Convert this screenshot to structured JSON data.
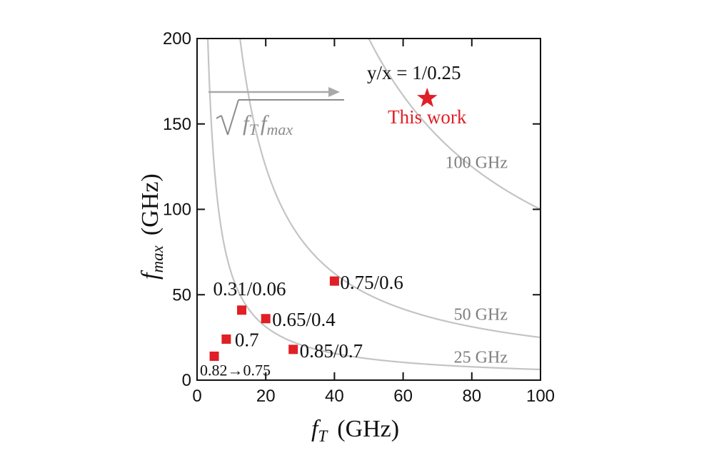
{
  "chart_data": {
    "type": "scatter",
    "xlabel_main": "f",
    "xlabel_sub": "T",
    "xlabel_unit": "(GHz)",
    "ylabel_main": "f",
    "ylabel_sub": "max",
    "ylabel_unit": "(GHz)",
    "xlim": [
      0,
      100
    ],
    "ylim": [
      0,
      200
    ],
    "x_ticks": [
      0,
      20,
      40,
      60,
      80,
      100
    ],
    "y_ticks": [
      0,
      50,
      100,
      150,
      200
    ],
    "contours": [
      {
        "value": 25,
        "label": "25 GHz"
      },
      {
        "value": 50,
        "label": "50 GHz"
      },
      {
        "value": 100,
        "label": "100 GHz"
      }
    ],
    "points": [
      {
        "x": 5,
        "y": 14,
        "label": "0.82→0.75"
      },
      {
        "x": 8.5,
        "y": 24,
        "label": "0.7"
      },
      {
        "x": 13,
        "y": 41,
        "label": "0.31/0.06"
      },
      {
        "x": 20,
        "y": 36,
        "label": "0.65/0.4"
      },
      {
        "x": 28,
        "y": 18,
        "label": "0.85/0.7"
      },
      {
        "x": 40,
        "y": 58,
        "label": "0.75/0.6"
      }
    ],
    "highlight": {
      "x": 67,
      "y": 165,
      "label": "This work",
      "annotation": "y/x = 1/0.25"
    },
    "arrow_label_radical": "√",
    "arrow_label_f1": "f",
    "arrow_label_sub1": "T",
    "arrow_label_f2": "f",
    "arrow_label_sub2": "max"
  },
  "colors": {
    "marker": "#e01f26",
    "contour": "#c4c4c4",
    "contour_label": "#7f7f7f",
    "axis": "#111111"
  }
}
